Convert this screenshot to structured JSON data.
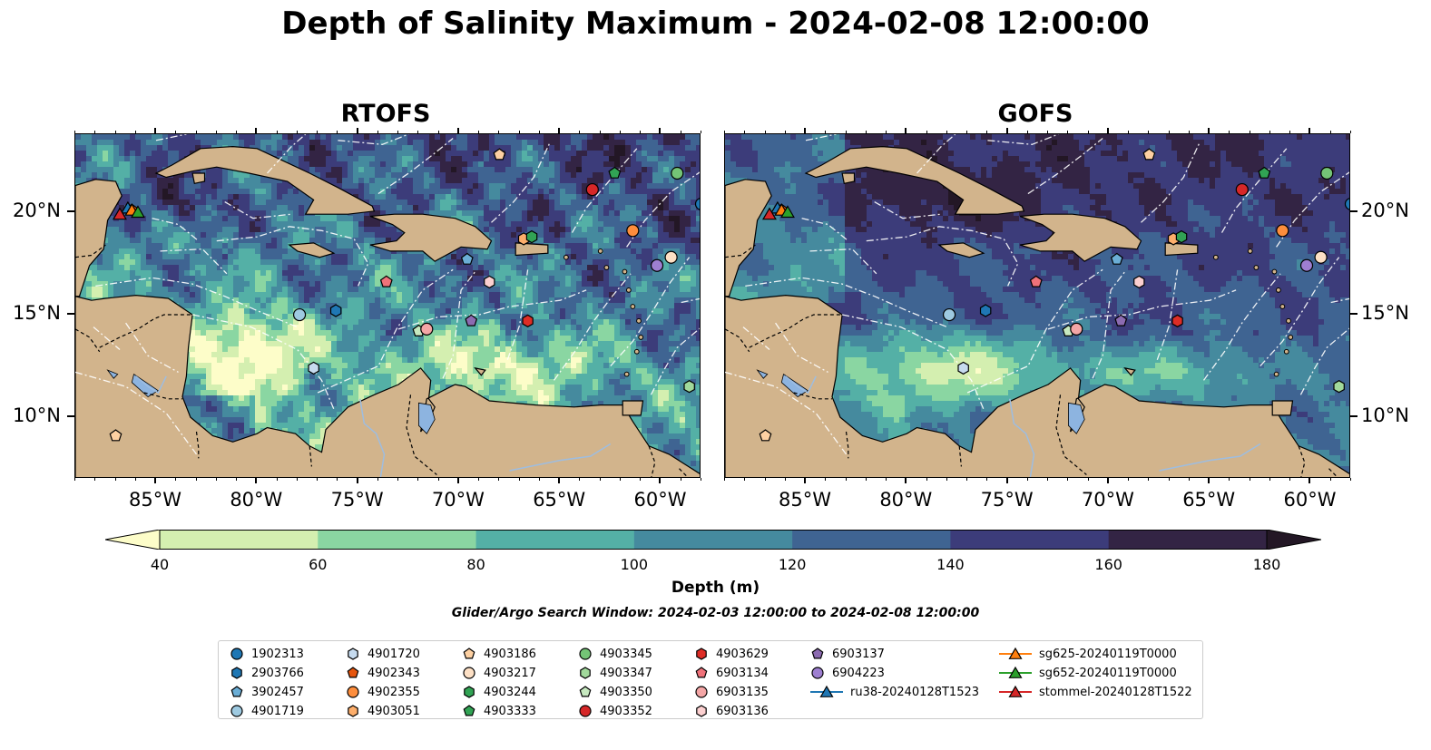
{
  "title": "Depth of Salinity Maximum - 2024-02-08 12:00:00",
  "panels": [
    {
      "title": "RTOFS",
      "model": "rtofs"
    },
    {
      "title": "GOFS",
      "model": "gofs"
    }
  ],
  "map_extent": {
    "lon_min": -89,
    "lon_max": -58,
    "lat_min": 7,
    "lat_max": 23.8
  },
  "lon_ticks": [
    {
      "value": -85,
      "label": "85°W"
    },
    {
      "value": -80,
      "label": "80°W"
    },
    {
      "value": -75,
      "label": "75°W"
    },
    {
      "value": -70,
      "label": "70°W"
    },
    {
      "value": -65,
      "label": "65°W"
    },
    {
      "value": -60,
      "label": "60°W"
    }
  ],
  "lat_ticks": [
    {
      "value": 20,
      "label": "20°N"
    },
    {
      "value": 15,
      "label": "15°N"
    },
    {
      "value": 10,
      "label": "10°N"
    }
  ],
  "colorbar": {
    "label": "Depth (m)",
    "ticks": [
      "40",
      "60",
      "80",
      "100",
      "120",
      "140",
      "160",
      "180"
    ],
    "min": 40,
    "max": 180,
    "extend": "both",
    "colors": [
      "#fdfdc9",
      "#d4efb0",
      "#8ad6a2",
      "#54b0a6",
      "#458a9e",
      "#3f6492",
      "#3c3c7a",
      "#332444",
      "#231725"
    ]
  },
  "colors": {
    "land": "#d2b48c",
    "lakes": "#8db4e0",
    "rivers": "#9ebde0",
    "boundary": "#ffffff"
  },
  "search_window": "Glider/Argo Search Window: 2024-02-03 12:00:00 to 2024-02-08 12:00:00",
  "legend": [
    {
      "label": "1902313",
      "marker": "circle",
      "color": "#1f77b4",
      "lon": -58.0,
      "lat": 20.4
    },
    {
      "label": "2903766",
      "marker": "hexagon",
      "color": "#1f77b4",
      "lon": -76.1,
      "lat": 15.2
    },
    {
      "label": "3902457",
      "marker": "pentagon",
      "color": "#6baed6",
      "lon": -69.6,
      "lat": 17.7
    },
    {
      "label": "4901719",
      "marker": "circle",
      "color": "#9ecae1",
      "lon": -77.9,
      "lat": 15.0
    },
    {
      "label": "4901720",
      "marker": "hexagon",
      "color": "#c6dbef",
      "lon": -77.2,
      "lat": 12.4
    },
    {
      "label": "4902343",
      "marker": "pentagon",
      "color": "#e6550d",
      "lon": -86.2,
      "lat": 20.1
    },
    {
      "label": "4902355",
      "marker": "circle",
      "color": "#fd8d3c",
      "lon": -61.4,
      "lat": 19.1
    },
    {
      "label": "4903051",
      "marker": "hexagon",
      "color": "#fdae6b",
      "lon": -66.8,
      "lat": 18.7
    },
    {
      "label": "4903186",
      "marker": "pentagon",
      "color": "#fdd0a2",
      "lon": -68.0,
      "lat": 22.8
    },
    {
      "label": "4903217",
      "marker": "circle",
      "color": "#fde0c5",
      "lon": -59.5,
      "lat": 17.8
    },
    {
      "label": "4903244",
      "marker": "hexagon",
      "color": "#31a354",
      "lon": -66.4,
      "lat": 18.8
    },
    {
      "label": "4903333",
      "marker": "pentagon",
      "color": "#31a354",
      "lon": -62.3,
      "lat": 21.9
    },
    {
      "label": "4903345",
      "marker": "circle",
      "color": "#74c476",
      "lon": -59.2,
      "lat": 21.9
    },
    {
      "label": "4903347",
      "marker": "hexagon",
      "color": "#a1d99b",
      "lon": -58.6,
      "lat": 11.5
    },
    {
      "label": "4903350",
      "marker": "pentagon",
      "color": "#c7e9c0",
      "lon": -72.0,
      "lat": 14.2
    },
    {
      "label": "4903352",
      "marker": "circle",
      "color": "#d62728",
      "lon": -63.4,
      "lat": 21.1
    },
    {
      "label": "4903629",
      "marker": "hexagon",
      "color": "#de2d26",
      "lon": -66.6,
      "lat": 14.7
    },
    {
      "label": "6903134",
      "marker": "pentagon",
      "color": "#f0727a",
      "lon": -73.6,
      "lat": 16.6
    },
    {
      "label": "6903135",
      "marker": "circle",
      "color": "#f4a6a6",
      "lon": -71.6,
      "lat": 14.3
    },
    {
      "label": "6903136",
      "marker": "hexagon",
      "color": "#fcd0d0",
      "lon": -68.5,
      "lat": 16.6
    },
    {
      "label": "6903137",
      "marker": "pentagon",
      "color": "#8c6bb1",
      "lon": -69.4,
      "lat": 14.7
    },
    {
      "label": "6904223",
      "marker": "circle",
      "color": "#9e7fd1",
      "lon": -60.2,
      "lat": 17.4
    },
    {
      "label": "ru38-20240128T1523",
      "marker": "triangle",
      "color": "#1f77b4",
      "line": true,
      "lon": -86.4,
      "lat": 20.2
    },
    {
      "label": "sg625-20240119T0000",
      "marker": "triangle",
      "color": "#ff7f0e",
      "line": true,
      "lon": -86.2,
      "lat": 20.1
    },
    {
      "label": "sg652-20240119T0000",
      "marker": "triangle",
      "color": "#2ca02c",
      "line": true,
      "lon": -85.9,
      "lat": 20.0
    },
    {
      "label": "stommel-20240128T1522",
      "marker": "triangle",
      "color": "#d62728",
      "line": true,
      "lon": -86.8,
      "lat": 19.9
    },
    {
      "label": "",
      "marker": "pentagon",
      "color": "#fdd0a2",
      "lon": -87.0,
      "lat": 9.1
    }
  ]
}
